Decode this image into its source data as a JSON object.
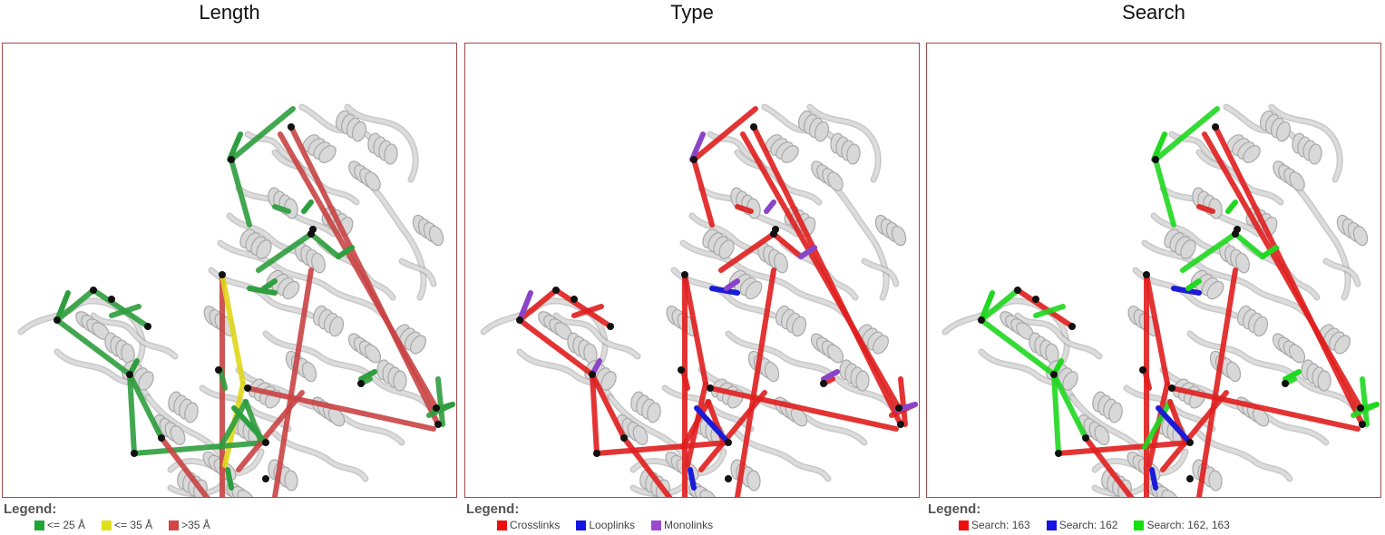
{
  "panels": [
    {
      "title": "Length",
      "legend_title": "Legend:",
      "legend": [
        {
          "label": "<= 25 Å",
          "color": "#1fa637"
        },
        {
          "label": "<= 35 Å",
          "color": "#e0e01a"
        },
        {
          "label": ">35 Å",
          "color": "#d34545"
        }
      ],
      "colors": {
        "a": "#2e9e3e",
        "b": "#e0d81a",
        "c": "#c94444",
        "mono": "#2e9e3e"
      }
    },
    {
      "title": "Type",
      "legend_title": "Legend:",
      "legend": [
        {
          "label": "Crosslinks",
          "color": "#f00f0f"
        },
        {
          "label": "Looplinks",
          "color": "#1414e6"
        },
        {
          "label": "Monolinks",
          "color": "#9a48d0"
        }
      ],
      "colors": {
        "a": "#e01f1f",
        "b": "#e01f1f",
        "c": "#e01f1f",
        "loop": "#1c1cd8",
        "mono": "#8a44c8"
      }
    },
    {
      "title": "Search",
      "legend_title": "Legend:",
      "legend": [
        {
          "label": "Search: 163",
          "color": "#f00f0f"
        },
        {
          "label": "Search: 162",
          "color": "#1414e6"
        },
        {
          "label": "Search: 162, 163",
          "color": "#12e012"
        }
      ],
      "colors": {
        "a": "#20d820",
        "b": "#e01f1f",
        "c": "#e01f1f",
        "loop": "#1c1cd8",
        "mono": "#20d820"
      }
    }
  ]
}
